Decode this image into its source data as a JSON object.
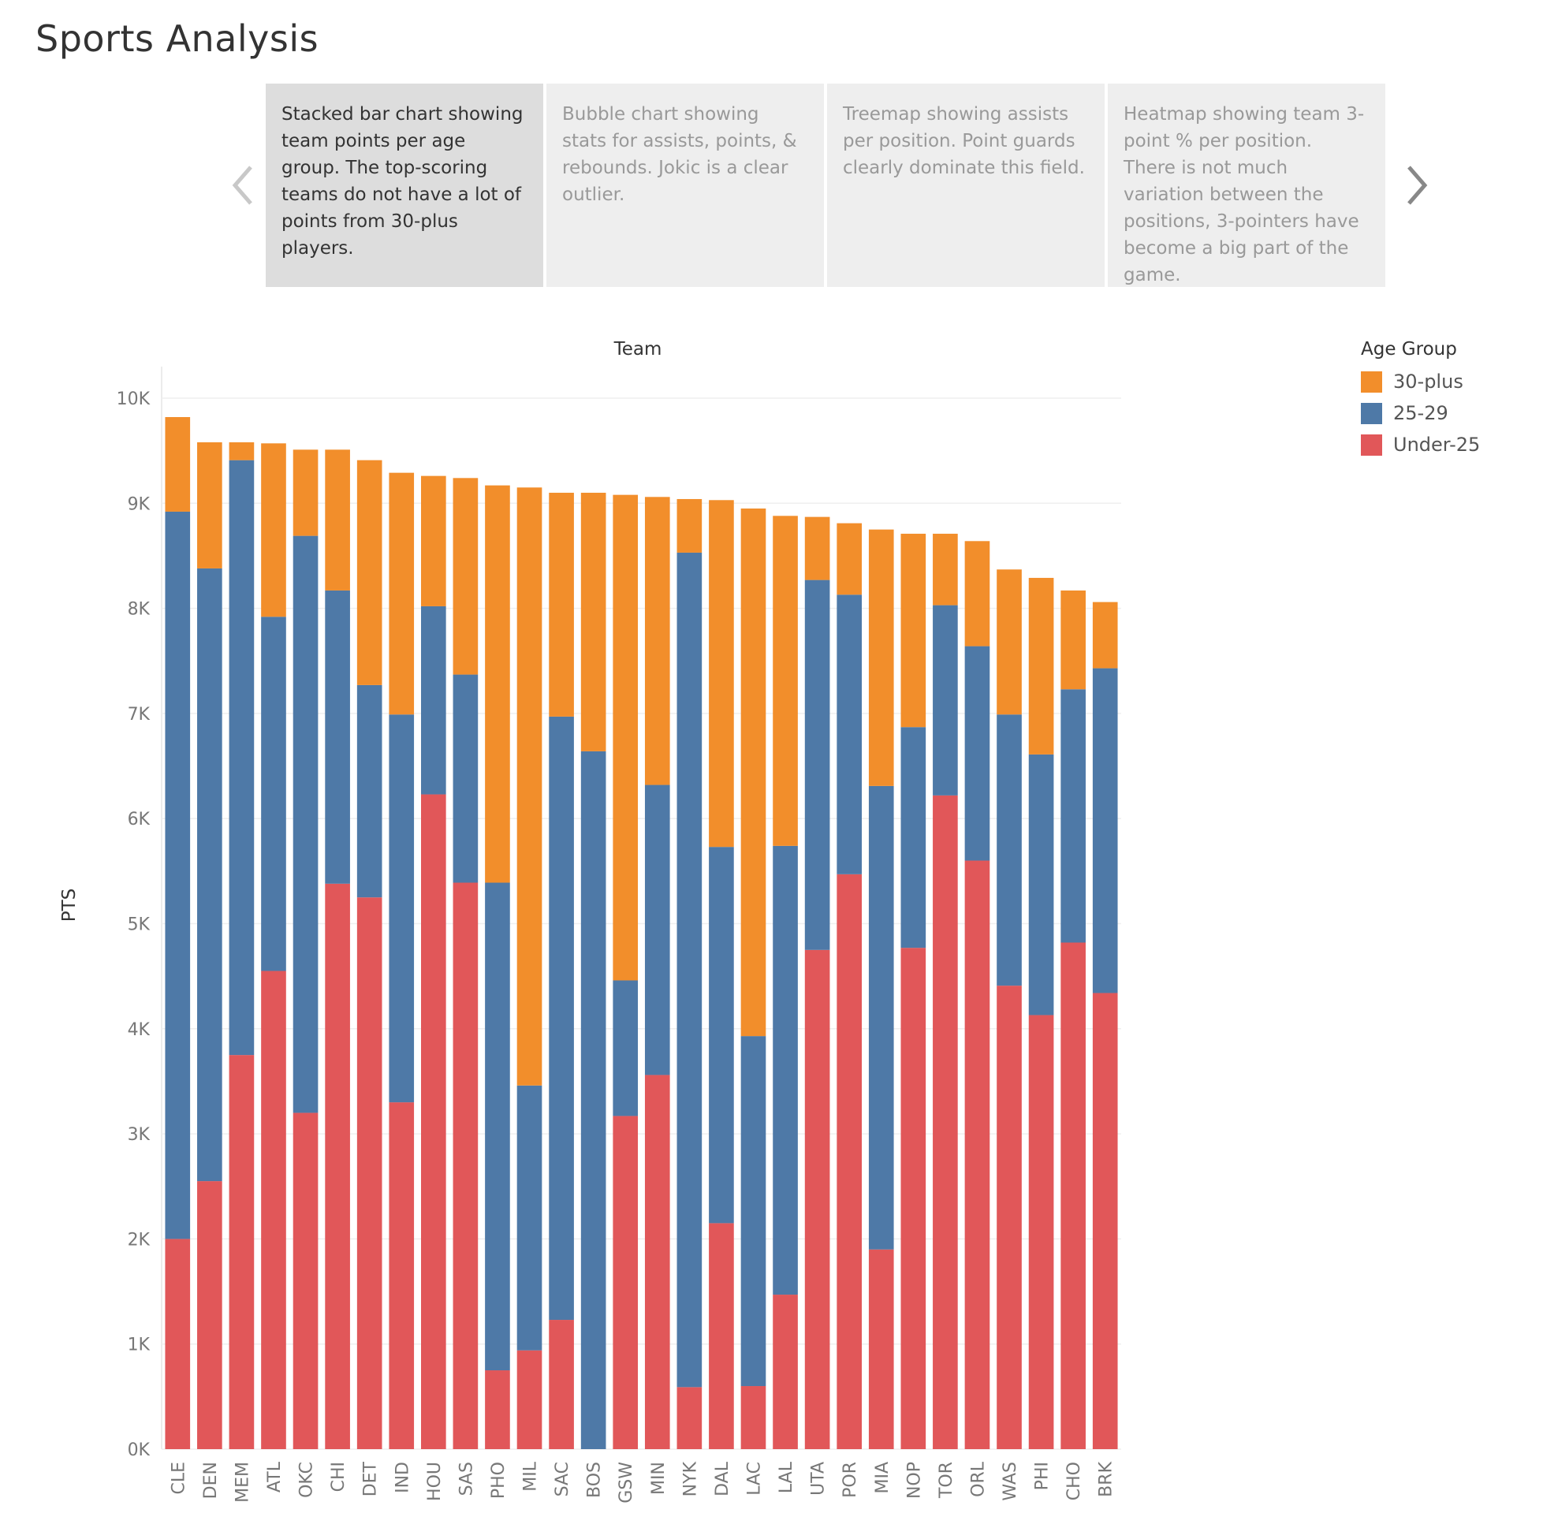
{
  "page": {
    "title": "Sports Analysis"
  },
  "story": {
    "points": [
      {
        "text": "Stacked bar chart showing team points per age group. The top-scoring teams do not have a lot of points from 30-plus players.",
        "active": true
      },
      {
        "text": "Bubble chart showing stats for assists, points, & rebounds. Jokic is a clear outlier.",
        "active": false
      },
      {
        "text": "Treemap showing assists per position. Point guards clearly dominate this field.",
        "active": false
      },
      {
        "text": "Heatmap showing team 3-point % per position. There is  not much variation between the positions, 3-pointers have become a big part of the game.",
        "active": false
      }
    ],
    "prev_icon": "chevron-left-icon",
    "next_icon": "chevron-right-icon"
  },
  "chart_data": {
    "type": "bar",
    "stacked": true,
    "title": "",
    "xlabel": "Team",
    "ylabel": "PTS",
    "ylim": [
      0,
      10000
    ],
    "yticks": [
      0,
      1000,
      2000,
      3000,
      4000,
      5000,
      6000,
      7000,
      8000,
      9000,
      10000
    ],
    "ytick_labels": [
      "0K",
      "1K",
      "2K",
      "3K",
      "4K",
      "5K",
      "6K",
      "7K",
      "8K",
      "9K",
      "10K"
    ],
    "grid": true,
    "legend_title": "Age Group",
    "legend_position": "top-right",
    "legend_order": [
      "30-plus",
      "25-29",
      "Under-25"
    ],
    "categories": [
      "CLE",
      "DEN",
      "MEM",
      "ATL",
      "OKC",
      "CHI",
      "DET",
      "IND",
      "HOU",
      "SAS",
      "PHO",
      "MIL",
      "SAC",
      "BOS",
      "GSW",
      "MIN",
      "NYK",
      "DAL",
      "LAC",
      "LAL",
      "UTA",
      "POR",
      "MIA",
      "NOP",
      "TOR",
      "ORL",
      "WAS",
      "PHI",
      "CHO",
      "BRK"
    ],
    "series": [
      {
        "name": "Under-25",
        "color": "#e15759",
        "values": [
          2000,
          2550,
          3750,
          4550,
          3200,
          5380,
          5250,
          3300,
          6230,
          5390,
          750,
          940,
          1230,
          0,
          3170,
          3560,
          590,
          2150,
          600,
          1470,
          4750,
          5470,
          1900,
          4770,
          6220,
          5600,
          4410,
          4130,
          4820,
          4340
        ]
      },
      {
        "name": "25-29",
        "color": "#4e79a7",
        "values": [
          6920,
          5830,
          5660,
          3370,
          5490,
          2790,
          2020,
          3690,
          1790,
          1980,
          4640,
          2520,
          5740,
          6640,
          1290,
          2760,
          7940,
          3580,
          3330,
          4270,
          3520,
          2660,
          4410,
          2100,
          1810,
          2040,
          2580,
          2480,
          2410,
          3090
        ]
      },
      {
        "name": "30-plus",
        "color": "#f28e2b",
        "values": [
          900,
          1200,
          170,
          1650,
          820,
          1340,
          2140,
          2300,
          1240,
          1870,
          3780,
          5690,
          2130,
          2460,
          4620,
          2740,
          510,
          3300,
          5020,
          3140,
          600,
          680,
          2440,
          1840,
          680,
          1000,
          1380,
          1680,
          940,
          630
        ]
      }
    ]
  }
}
